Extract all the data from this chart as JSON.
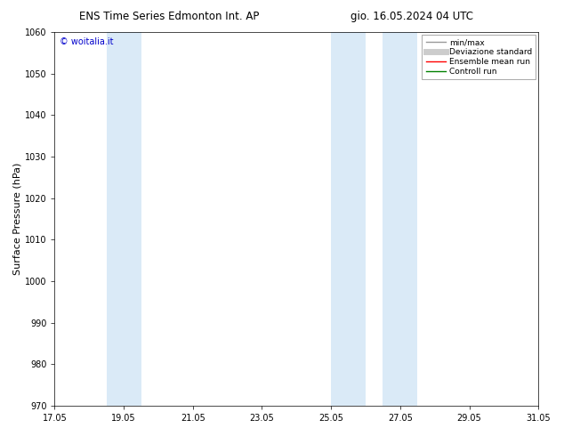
{
  "title_left": "ENS Time Series Edmonton Int. AP",
  "title_right": "gio. 16.05.2024 04 UTC",
  "ylabel": "Surface Pressure (hPa)",
  "ylim": [
    970,
    1060
  ],
  "yticks": [
    970,
    980,
    990,
    1000,
    1010,
    1020,
    1030,
    1040,
    1050,
    1060
  ],
  "xtick_days": [
    17,
    19,
    21,
    23,
    25,
    27,
    29,
    31
  ],
  "xtick_labels": [
    "17.05",
    "19.05",
    "21.05",
    "23.05",
    "25.05",
    "27.05",
    "29.05",
    "31.05"
  ],
  "shade_regions": [
    {
      "start_day": 18.5,
      "end_day": 19.5
    },
    {
      "start_day": 25.0,
      "end_day": 26.0
    },
    {
      "start_day": 26.5,
      "end_day": 27.5
    }
  ],
  "shade_color": "#daeaf7",
  "watermark": "© woitalia.it",
  "watermark_color": "#0000cc",
  "legend_entries": [
    {
      "label": "min/max",
      "color": "#999999",
      "lw": 1.0
    },
    {
      "label": "Deviazione standard",
      "color": "#cccccc",
      "lw": 5
    },
    {
      "label": "Ensemble mean run",
      "color": "#ff0000",
      "lw": 1.0
    },
    {
      "label": "Controll run",
      "color": "#008000",
      "lw": 1.0
    }
  ],
  "bg_color": "#ffffff",
  "title_fontsize": 8.5,
  "tick_fontsize": 7,
  "label_fontsize": 8,
  "legend_fontsize": 6.5
}
